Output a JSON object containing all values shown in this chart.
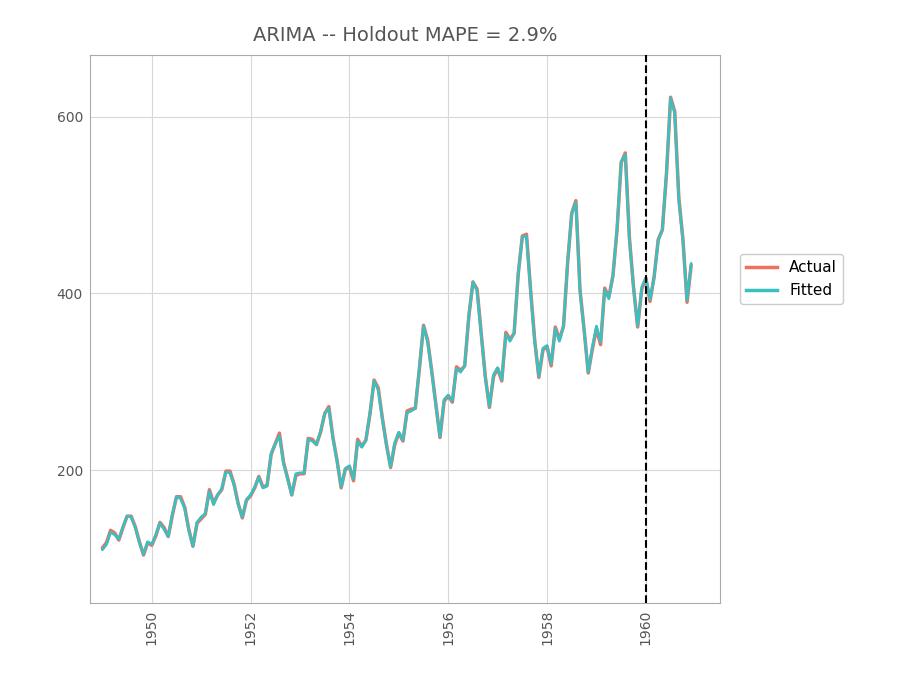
{
  "title": "ARIMA -- Holdout MAPE = 2.9%",
  "actual_color": "#F07060",
  "fitted_color": "#3BBFBF",
  "vline_x": 1960.0,
  "vline_color": "black",
  "vline_style": "--",
  "ylim": [
    50,
    670
  ],
  "xlim": [
    1948.75,
    1961.5
  ],
  "yticks": [
    200,
    400,
    600
  ],
  "xticks": [
    1950,
    1952,
    1954,
    1956,
    1958,
    1960
  ],
  "legend_labels": [
    "Actual",
    "Fitted"
  ],
  "background_color": "#ffffff",
  "fig_background": "#ffffff",
  "grid_color": "#d8d8d8",
  "title_fontsize": 14,
  "tick_fontsize": 10,
  "legend_fontsize": 11,
  "actual_linewidth": 2.5,
  "fitted_linewidth": 2.0,
  "actual_data": [
    112,
    118,
    132,
    129,
    121,
    135,
    148,
    148,
    136,
    119,
    104,
    118,
    115,
    126,
    141,
    135,
    125,
    149,
    170,
    170,
    158,
    133,
    114,
    140,
    145,
    150,
    178,
    163,
    172,
    178,
    199,
    199,
    184,
    162,
    146,
    166,
    171,
    180,
    193,
    181,
    183,
    218,
    230,
    242,
    209,
    191,
    172,
    194,
    196,
    196,
    236,
    235,
    229,
    243,
    264,
    272,
    237,
    211,
    180,
    201,
    204,
    188,
    235,
    227,
    234,
    264,
    302,
    293,
    259,
    229,
    203,
    229,
    242,
    233,
    267,
    269,
    270,
    315,
    364,
    347,
    312,
    274,
    237,
    278,
    284,
    277,
    317,
    313,
    318,
    374,
    413,
    405,
    355,
    306,
    271,
    306,
    315,
    301,
    356,
    348,
    355,
    422,
    465,
    467,
    404,
    347,
    305,
    336,
    340,
    318,
    362,
    348,
    363,
    435,
    491,
    505,
    404,
    359,
    310,
    337,
    360,
    342,
    406,
    396,
    420,
    472,
    548,
    559,
    463,
    407,
    362,
    405,
    417,
    391,
    419,
    461,
    472,
    535,
    622,
    606,
    508,
    461,
    390,
    432
  ],
  "fitted_data": [
    110,
    116,
    130,
    127,
    122,
    136,
    148,
    147,
    135,
    118,
    105,
    119,
    116,
    127,
    140,
    133,
    125,
    150,
    170,
    168,
    157,
    132,
    114,
    141,
    147,
    151,
    176,
    161,
    172,
    179,
    198,
    197,
    183,
    161,
    147,
    167,
    172,
    181,
    192,
    180,
    182,
    219,
    230,
    239,
    208,
    190,
    172,
    196,
    197,
    197,
    235,
    233,
    229,
    244,
    264,
    270,
    236,
    210,
    181,
    202,
    205,
    190,
    233,
    226,
    234,
    265,
    301,
    291,
    258,
    228,
    204,
    231,
    243,
    234,
    265,
    267,
    270,
    316,
    363,
    345,
    311,
    273,
    238,
    280,
    285,
    278,
    315,
    311,
    318,
    375,
    413,
    403,
    354,
    305,
    272,
    308,
    316,
    302,
    354,
    346,
    355,
    423,
    464,
    465,
    403,
    346,
    306,
    338,
    341,
    320,
    360,
    346,
    363,
    436,
    490,
    503,
    403,
    358,
    311,
    339,
    363,
    345,
    404,
    394,
    420,
    474,
    549,
    557,
    461,
    406,
    363,
    407,
    418,
    393,
    418,
    460,
    472,
    537,
    621,
    604,
    507,
    460,
    392,
    434
  ],
  "start_year": 1949,
  "months_per_year": 12
}
